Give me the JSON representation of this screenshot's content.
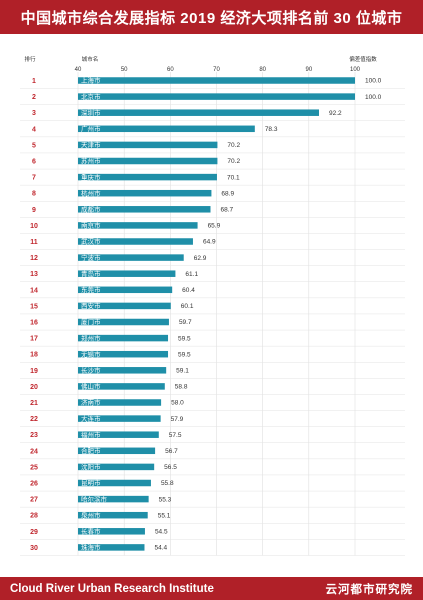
{
  "header": {
    "title": "中国城市综合发展指标 2019 经济大项排名前 30 位城市"
  },
  "footer": {
    "org_en": "Cloud River Urban Research Institute",
    "org_cn": "云河都市研究院"
  },
  "chart_data": {
    "type": "bar",
    "orientation": "horizontal",
    "column_headers": {
      "rank": "排行",
      "city": "城市名",
      "value": "偏差值指数"
    },
    "xlim": [
      40,
      100
    ],
    "ticks": [
      40,
      50,
      60,
      70,
      80,
      90,
      100
    ],
    "bar_color": "#1f8fa8",
    "rank_color": "#c0262d",
    "rows": [
      {
        "rank": "1",
        "city": "上海市",
        "value": 100.0,
        "label": "100.0"
      },
      {
        "rank": "2",
        "city": "北京市",
        "value": 100.0,
        "label": "100.0"
      },
      {
        "rank": "3",
        "city": "深圳市",
        "value": 92.2,
        "label": "92.2"
      },
      {
        "rank": "4",
        "city": "广州市",
        "value": 78.3,
        "label": "78.3"
      },
      {
        "rank": "5",
        "city": "天津市",
        "value": 70.2,
        "label": "70.2"
      },
      {
        "rank": "6",
        "city": "苏州市",
        "value": 70.2,
        "label": "70.2"
      },
      {
        "rank": "7",
        "city": "重庆市",
        "value": 70.1,
        "label": "70.1"
      },
      {
        "rank": "8",
        "city": "杭州市",
        "value": 68.9,
        "label": "68.9"
      },
      {
        "rank": "9",
        "city": "成都市",
        "value": 68.7,
        "label": "68.7"
      },
      {
        "rank": "10",
        "city": "南京市",
        "value": 65.9,
        "label": "65.9"
      },
      {
        "rank": "11",
        "city": "武汉市",
        "value": 64.9,
        "label": "64.9"
      },
      {
        "rank": "12",
        "city": "宁波市",
        "value": 62.9,
        "label": "62.9"
      },
      {
        "rank": "13",
        "city": "青岛市",
        "value": 61.1,
        "label": "61.1"
      },
      {
        "rank": "14",
        "city": "东莞市",
        "value": 60.4,
        "label": "60.4"
      },
      {
        "rank": "15",
        "city": "西安市",
        "value": 60.1,
        "label": "60.1"
      },
      {
        "rank": "16",
        "city": "厦门市",
        "value": 59.7,
        "label": "59.7"
      },
      {
        "rank": "17",
        "city": "郑州市",
        "value": 59.5,
        "label": "59.5"
      },
      {
        "rank": "18",
        "city": "无锡市",
        "value": 59.5,
        "label": "59.5"
      },
      {
        "rank": "19",
        "city": "长沙市",
        "value": 59.1,
        "label": "59.1"
      },
      {
        "rank": "20",
        "city": "佛山市",
        "value": 58.8,
        "label": "58.8"
      },
      {
        "rank": "21",
        "city": "济南市",
        "value": 58.0,
        "label": "58.0"
      },
      {
        "rank": "22",
        "city": "大连市",
        "value": 57.9,
        "label": "57.9"
      },
      {
        "rank": "23",
        "city": "福州市",
        "value": 57.5,
        "label": "57.5"
      },
      {
        "rank": "24",
        "city": "合肥市",
        "value": 56.7,
        "label": "56.7"
      },
      {
        "rank": "25",
        "city": "沈阳市",
        "value": 56.5,
        "label": "56.5"
      },
      {
        "rank": "26",
        "city": "昆明市",
        "value": 55.8,
        "label": "55.8"
      },
      {
        "rank": "27",
        "city": "哈尔滨市",
        "value": 55.3,
        "label": "55.3"
      },
      {
        "rank": "28",
        "city": "泉州市",
        "value": 55.1,
        "label": "55.1"
      },
      {
        "rank": "29",
        "city": "长春市",
        "value": 54.5,
        "label": "54.5"
      },
      {
        "rank": "30",
        "city": "珠海市",
        "value": 54.4,
        "label": "54.4"
      }
    ]
  }
}
